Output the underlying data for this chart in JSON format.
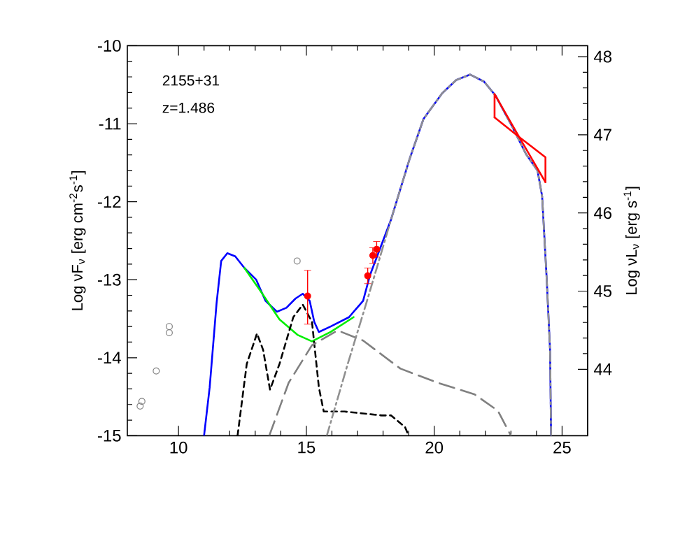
{
  "chart_data": {
    "type": "line",
    "ylabel": "Log νF$_{ν}$ [erg cm$^{-2}$s$^{-1}$]",
    "y2label": "Log νL$_{ν}$ [erg s$^{-1}$]",
    "annotations": [
      "2155+31",
      "z=1.486"
    ],
    "xlim": [
      8,
      26
    ],
    "xticks": [
      10,
      15,
      20,
      25
    ],
    "ylim": [
      -15,
      -10
    ],
    "yticks": [
      -15,
      -14,
      -13,
      -12,
      -11,
      -10
    ],
    "y2lim": [
      43.15,
      48.14
    ],
    "y2ticks": [
      44,
      45,
      46,
      47,
      48
    ],
    "series": [
      {
        "color": "#0000ff",
        "line_style": "solid",
        "x": [
          11.0,
          11.22,
          11.49,
          11.67,
          11.91,
          12.22,
          12.58,
          13.04,
          13.4,
          13.85,
          14.22,
          14.58,
          14.86,
          15.13,
          15.31,
          15.49,
          15.95,
          16.67,
          17.22,
          17.49,
          18.31,
          19.04,
          19.58,
          20.31,
          20.86,
          21.4,
          21.95,
          22.4,
          23.04,
          23.59,
          24.04,
          24.22,
          24.4,
          24.53,
          24.57
        ],
        "values": [
          -15,
          -14.38,
          -13.3,
          -12.76,
          -12.66,
          -12.7,
          -12.85,
          -13.0,
          -13.27,
          -13.41,
          -13.36,
          -13.24,
          -13.18,
          -13.27,
          -13.54,
          -13.67,
          -13.6,
          -13.48,
          -13.27,
          -12.94,
          -12.23,
          -11.45,
          -10.94,
          -10.61,
          -10.44,
          -10.37,
          -10.46,
          -10.64,
          -11.03,
          -11.39,
          -11.6,
          -11.93,
          -13.0,
          -13.9,
          -15
        ]
      },
      {
        "color": "#00ee00",
        "line_style": "solid",
        "x": [
          12.58,
          13.22,
          13.95,
          14.67,
          15.22,
          15.95,
          16.85
        ],
        "values": [
          -12.85,
          -13.15,
          -13.51,
          -13.71,
          -13.79,
          -13.67,
          -13.48
        ]
      },
      {
        "color": "#000000",
        "line_style": "dashed",
        "x": [
          12.31,
          12.67,
          13.07,
          13.31,
          13.58,
          13.95,
          14.49,
          14.86,
          15.22,
          15.49,
          15.68,
          16.49,
          17.95,
          18.31,
          18.86,
          19.0
        ],
        "values": [
          -15,
          -14.08,
          -13.69,
          -13.9,
          -14.41,
          -14.08,
          -13.48,
          -13.32,
          -13.54,
          -14.38,
          -14.69,
          -14.69,
          -14.74,
          -14.74,
          -14.89,
          -15
        ]
      },
      {
        "color": "#808080",
        "line_style": "long dashed",
        "x": [
          13.55,
          14.31,
          15.22,
          16.22,
          17.22,
          18.31,
          18.68,
          20.13,
          21.58,
          22.49,
          23.0
        ],
        "values": [
          -15,
          -14.32,
          -13.84,
          -13.65,
          -13.78,
          -14.05,
          -14.14,
          -14.32,
          -14.47,
          -14.68,
          -15
        ]
      },
      {
        "color": "#909090",
        "line_style": "dash-dot",
        "x": [
          15.8,
          16.6,
          17.3,
          17.8,
          18.31,
          19.04,
          19.58,
          20.31,
          20.86,
          21.4,
          21.95,
          22.4,
          23.04,
          23.59,
          24.04,
          24.22,
          24.4,
          24.53,
          24.57
        ],
        "values": [
          -15,
          -14.1,
          -13.35,
          -12.8,
          -12.23,
          -11.45,
          -10.94,
          -10.61,
          -10.44,
          -10.37,
          -10.46,
          -10.64,
          -11.03,
          -11.39,
          -11.6,
          -11.93,
          -13.0,
          -13.9,
          -15
        ]
      },
      {
        "color": "#ff0000",
        "line_style": "solid",
        "x": [
          22.36,
          22.36,
          23.32,
          24.35,
          24.35
        ],
        "values": [
          -10.92,
          -10.62,
          -11.17,
          -11.43,
          -11.75
        ]
      },
      {
        "color": "#ff0000",
        "line_style": "solid",
        "x": [
          22.36,
          23.32,
          24.35
        ],
        "values": [
          -10.92,
          -11.17,
          -11.75
        ]
      },
      {
        "type": "scatter",
        "color": "#ff0000",
        "marker": "circle",
        "x": [
          15.05,
          17.4,
          17.6,
          17.75
        ],
        "values": [
          -13.21,
          -12.95,
          -12.69,
          -12.61
        ],
        "errors": [
          [
            -13.57,
            -12.88
          ],
          0.1,
          0.1,
          0.1
        ]
      },
      {
        "type": "scatter",
        "color": "#808080",
        "marker": "open circle",
        "x": [
          8.5,
          8.57,
          9.13,
          9.64,
          9.64,
          14.64
        ],
        "values": [
          -14.62,
          -14.56,
          -14.17,
          -13.6,
          -13.68,
          -12.76
        ]
      }
    ]
  }
}
